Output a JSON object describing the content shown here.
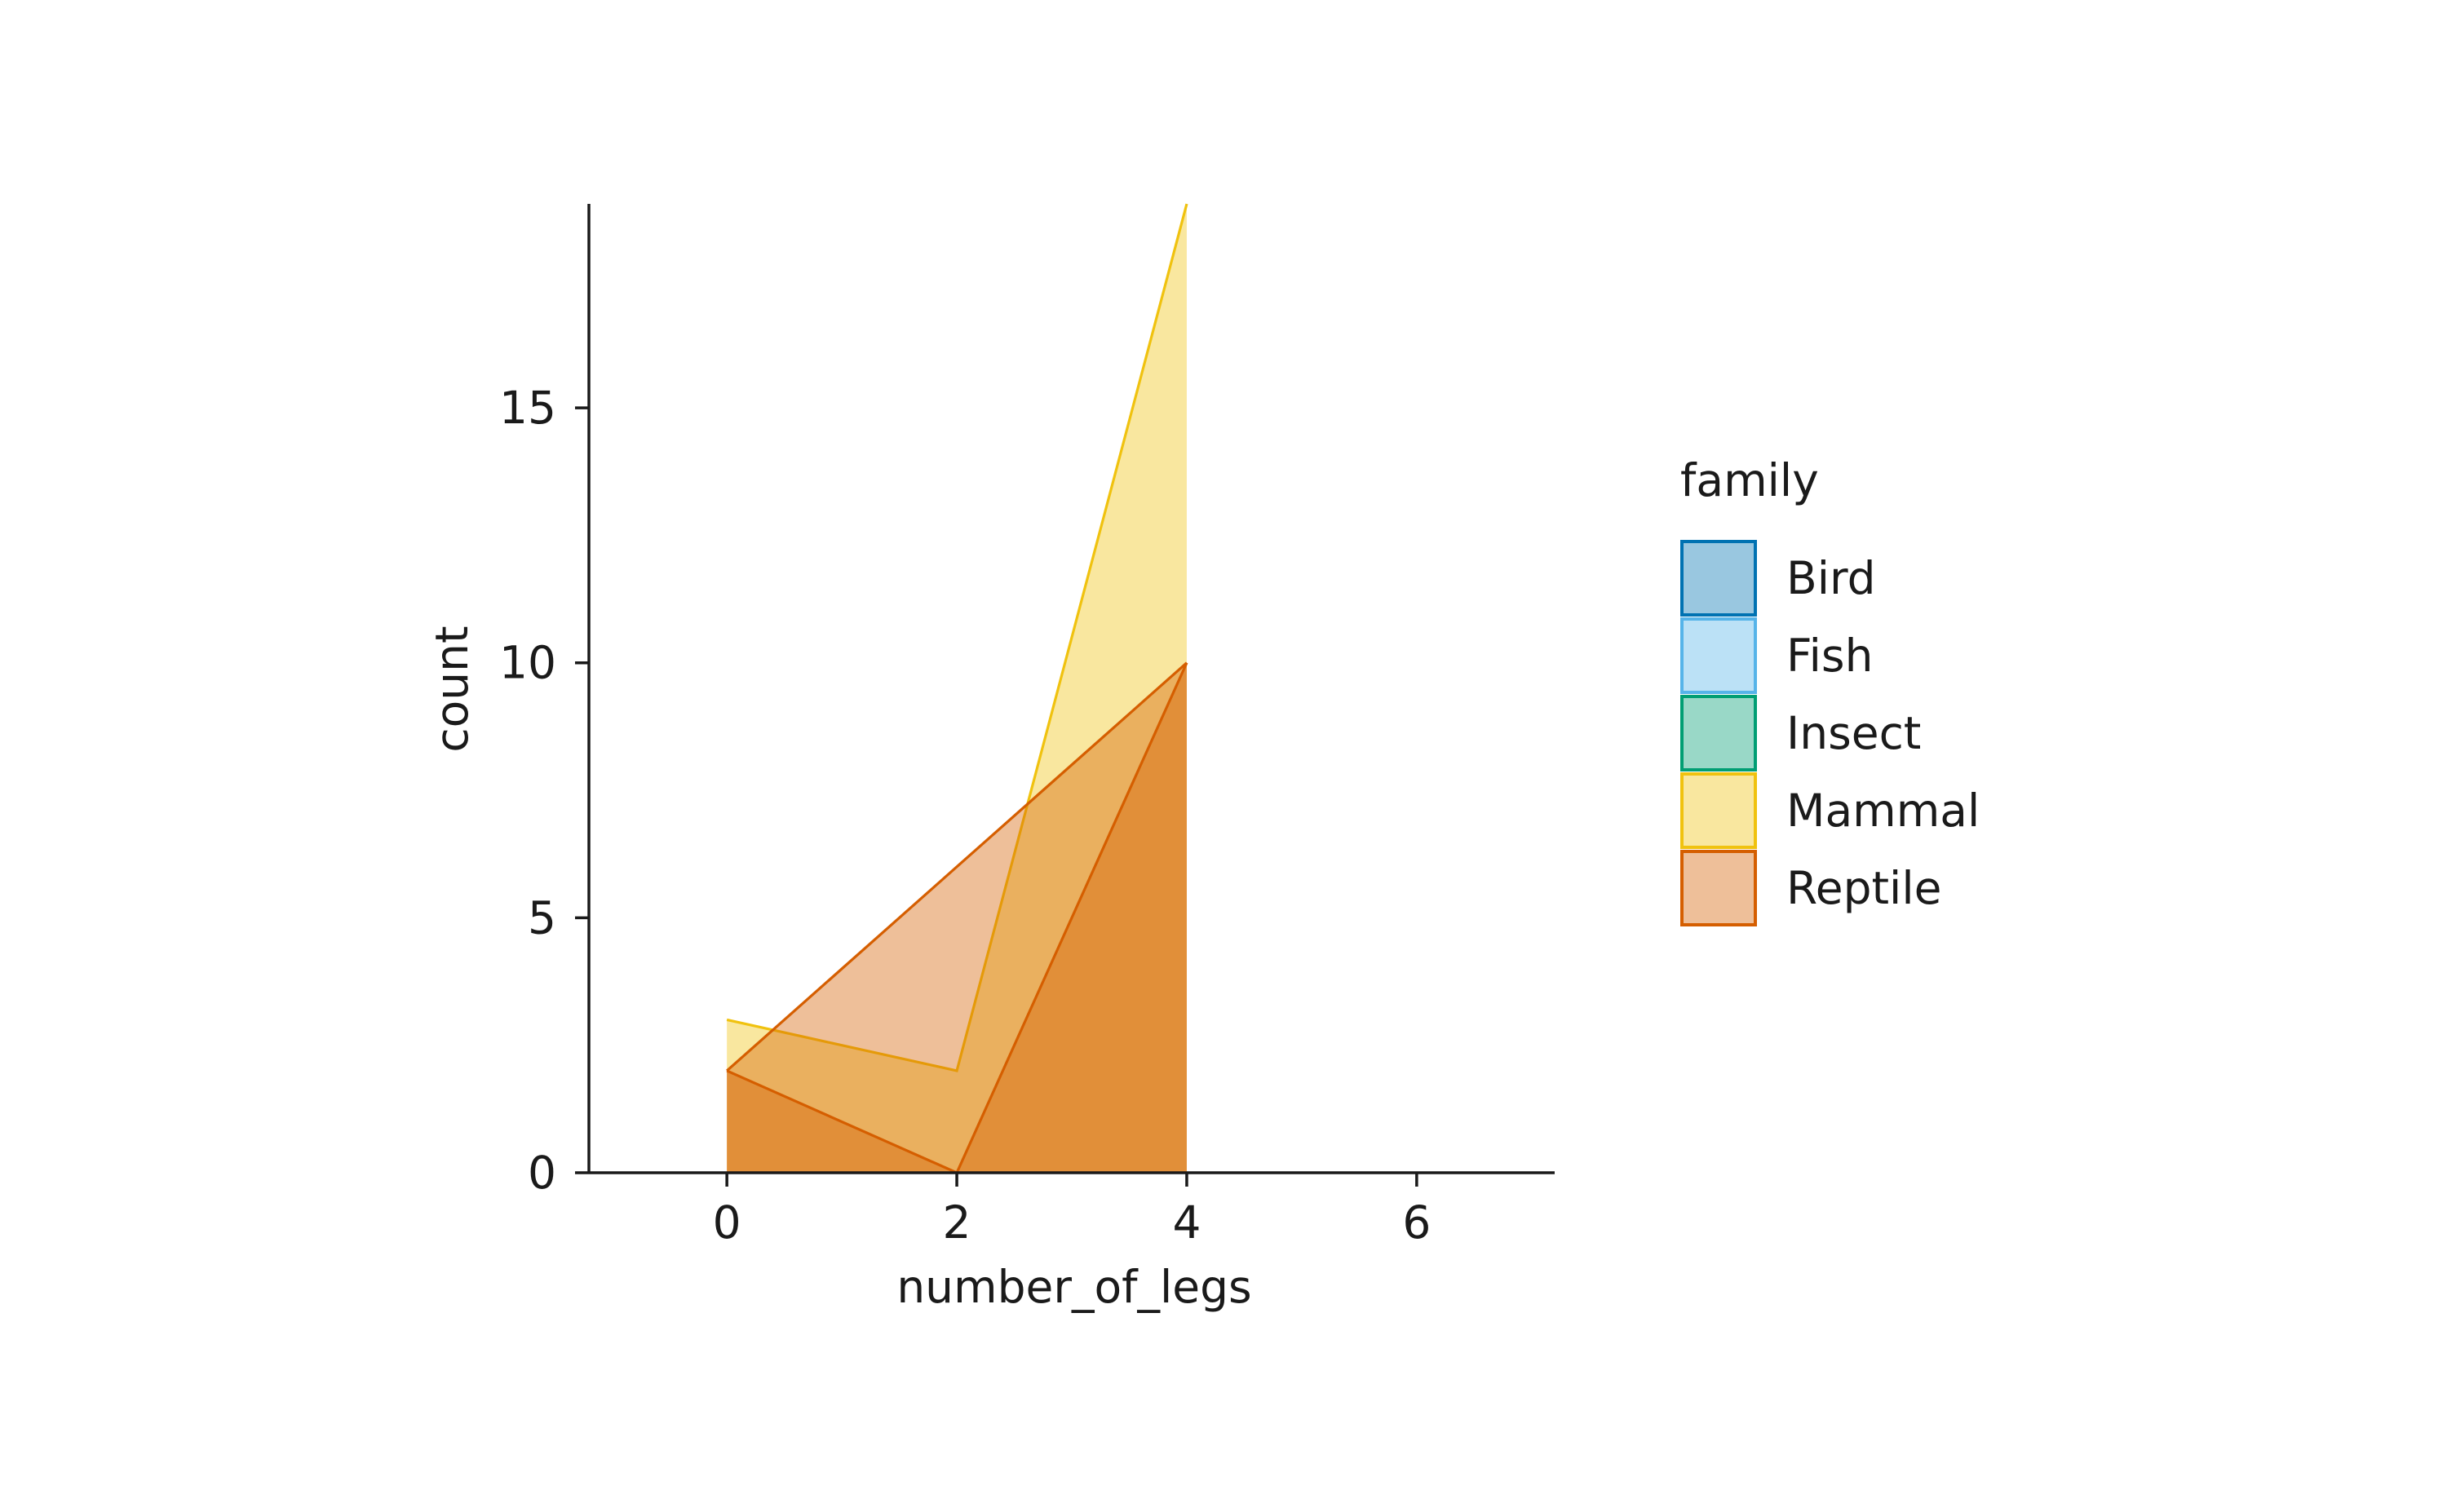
{
  "chart_data": {
    "type": "area",
    "xlabel": "number_of_legs",
    "ylabel": "count",
    "xlim": [
      -1.2,
      7.2
    ],
    "ylim": [
      0,
      19
    ],
    "xticks": [
      0,
      2,
      4,
      6
    ],
    "yticks": [
      0,
      5,
      10,
      15
    ],
    "grid": false,
    "legend": {
      "title": "family",
      "placement": "right",
      "entries": [
        "Bird",
        "Fish",
        "Insect",
        "Mammal",
        "Reptile"
      ]
    },
    "series": [
      {
        "name": "Bird",
        "color": "#0072B2",
        "x": [],
        "y": []
      },
      {
        "name": "Fish",
        "color": "#56B4E9",
        "x": [],
        "y": []
      },
      {
        "name": "Insect",
        "color": "#009E73",
        "x": [],
        "y": []
      },
      {
        "name": "Mammal",
        "color": "#F0C20F",
        "x": [
          0,
          2,
          4
        ],
        "y": [
          3,
          2,
          19
        ]
      },
      {
        "name": "Reptile",
        "color": "#D55E00",
        "x": [
          0,
          2,
          4
        ],
        "y": [
          2,
          0,
          10
        ]
      },
      {
        "name": "Reptile",
        "color": "#D55E00",
        "x": [
          0,
          2,
          4
        ],
        "y": [
          2,
          6,
          10
        ]
      }
    ]
  }
}
